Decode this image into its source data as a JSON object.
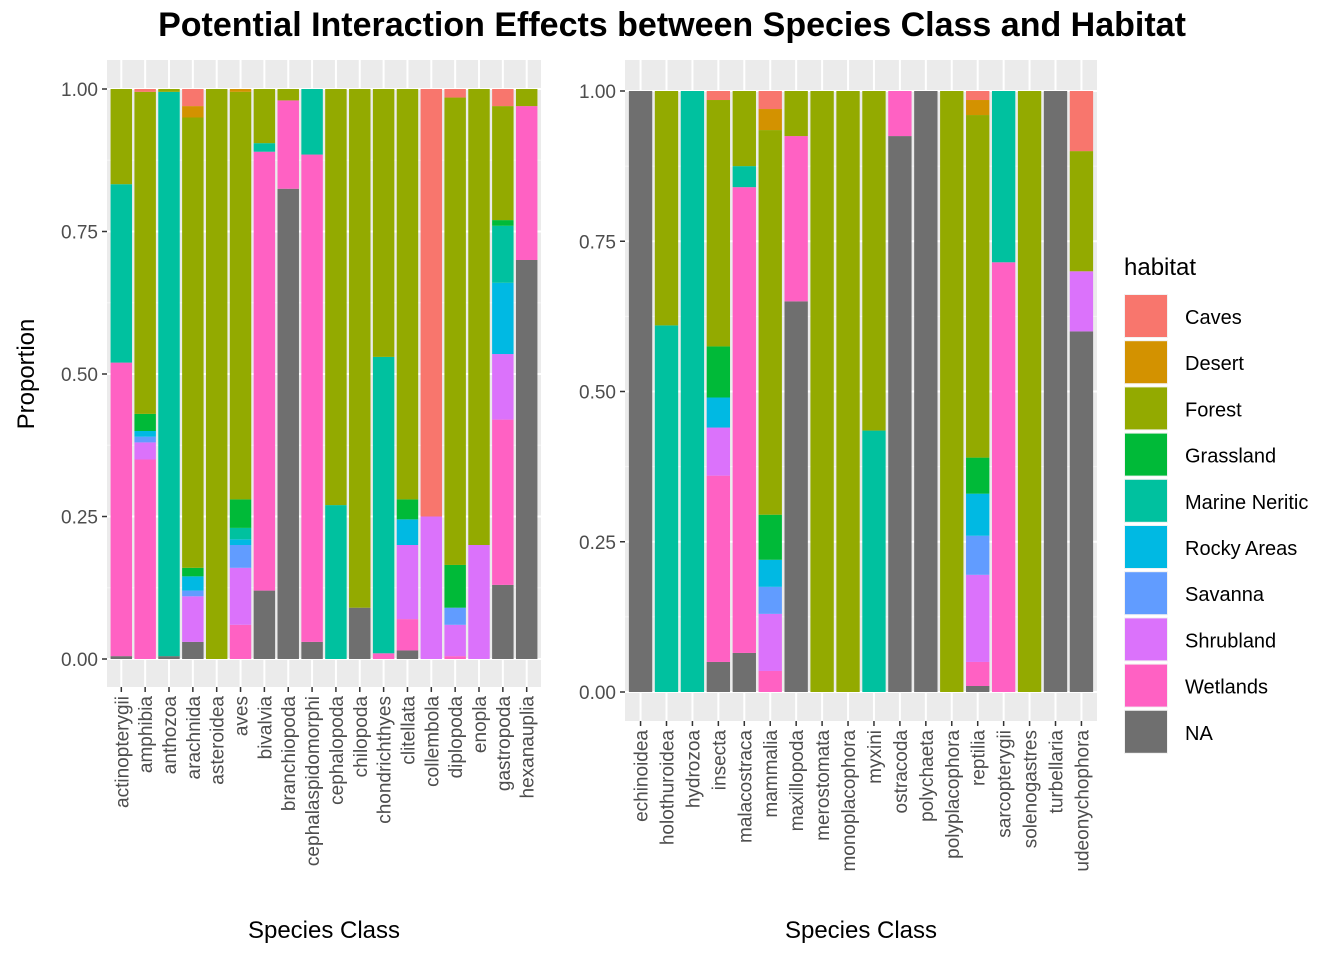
{
  "title": "Potential Interaction Effects between Species Class and Habitat",
  "legend_title": "habitat",
  "chart_data": {
    "type": "bar",
    "stacked": true,
    "habitats": [
      "Caves",
      "Desert",
      "Forest",
      "Grassland",
      "Marine Neritic",
      "Rocky Areas",
      "Savanna",
      "Shrubland",
      "Wetlands",
      "NA"
    ],
    "colors": {
      "Caves": "#F8766D",
      "Desert": "#D39200",
      "Forest": "#93AA00",
      "Grassland": "#00BA38",
      "Marine Neritic": "#00C19F",
      "Rocky Areas": "#00B9E3",
      "Savanna": "#619CFF",
      "Shrubland": "#DB72FB",
      "Wetlands": "#FF61C3",
      "NA": "#6F6F6F"
    },
    "panels": [
      {
        "xlabel": "Species Class",
        "ylabel": "Proportion",
        "ylim": [
          0,
          1
        ],
        "yticks": [
          "0.00",
          "0.25",
          "0.50",
          "0.75",
          "1.00"
        ],
        "categories": [
          "actinopterygii",
          "amphibia",
          "anthozoa",
          "arachnida",
          "asteroidea",
          "aves",
          "bivalvia",
          "branchiopoda",
          "cephalaspidomorphi",
          "cephalopoda",
          "chilopoda",
          "chondrichthyes",
          "clitellata",
          "collembola",
          "diplopoda",
          "enopla",
          "gastropoda",
          "hexanauplia"
        ],
        "values": [
          {
            "NA": 0.005,
            "Wetlands": 0.515,
            "Marine Neritic": 0.313,
            "Forest": 0.167
          },
          {
            "Wetlands": 0.35,
            "Shrubland": 0.03,
            "Savanna": 0.01,
            "Rocky Areas": 0.01,
            "Grassland": 0.03,
            "Forest": 0.565,
            "Caves": 0.005
          },
          {
            "NA": 0.005,
            "Marine Neritic": 0.99,
            "Forest": 0.005
          },
          {
            "NA": 0.03,
            "Shrubland": 0.08,
            "Savanna": 0.01,
            "Rocky Areas": 0.025,
            "Grassland": 0.015,
            "Forest": 0.79,
            "Desert": 0.02,
            "Caves": 0.03
          },
          {
            "Forest": 1.0
          },
          {
            "Wetlands": 0.06,
            "Shrubland": 0.1,
            "Savanna": 0.04,
            "Rocky Areas": 0.01,
            "Marine Neritic": 0.02,
            "Grassland": 0.05,
            "Forest": 0.715,
            "Desert": 0.005
          },
          {
            "NA": 0.12,
            "Wetlands": 0.77,
            "Marine Neritic": 0.015,
            "Forest": 0.095
          },
          {
            "NA": 0.825,
            "Wetlands": 0.155,
            "Forest": 0.02
          },
          {
            "NA": 0.03,
            "Wetlands": 0.855,
            "Marine Neritic": 0.115
          },
          {
            "Marine Neritic": 0.27,
            "Forest": 0.73
          },
          {
            "NA": 0.09,
            "Forest": 0.91
          },
          {
            "Wetlands": 0.01,
            "Marine Neritic": 0.52,
            "Forest": 0.47
          },
          {
            "NA": 0.015,
            "Wetlands": 0.055,
            "Shrubland": 0.13,
            "Rocky Areas": 0.045,
            "Grassland": 0.035,
            "Forest": 0.72
          },
          {
            "Shrubland": 0.25,
            "Caves": 0.75
          },
          {
            "Wetlands": 0.005,
            "Shrubland": 0.055,
            "Savanna": 0.03,
            "Grassland": 0.075,
            "Forest": 0.82,
            "Caves": 0.015
          },
          {
            "Shrubland": 0.2,
            "Forest": 0.8
          },
          {
            "NA": 0.13,
            "Wetlands": 0.29,
            "Shrubland": 0.115,
            "Rocky Areas": 0.125,
            "Marine Neritic": 0.1,
            "Grassland": 0.01,
            "Forest": 0.2,
            "Caves": 0.03
          },
          {
            "NA": 0.7,
            "Wetlands": 0.27,
            "Forest": 0.03
          }
        ]
      },
      {
        "xlabel": "Species Class",
        "ylabel": "",
        "ylim": [
          0,
          1
        ],
        "yticks": [
          "0.00",
          "0.25",
          "0.50",
          "0.75",
          "1.00"
        ],
        "categories": [
          "echinoidea",
          "holothuroidea",
          "hydrozoa",
          "insecta",
          "malacostraca",
          "mammalia",
          "maxillopoda",
          "merostomata",
          "monoplacophora",
          "myxini",
          "ostracoda",
          "polychaeta",
          "polyplacophora",
          "reptilia",
          "sarcopterygii",
          "solenogastres",
          "turbellaria",
          "udeonychophora"
        ],
        "values": [
          {
            "NA": 1.0
          },
          {
            "Marine Neritic": 0.61,
            "Forest": 0.39
          },
          {
            "Marine Neritic": 1.0
          },
          {
            "NA": 0.05,
            "Wetlands": 0.31,
            "Shrubland": 0.08,
            "Rocky Areas": 0.05,
            "Grassland": 0.085,
            "Forest": 0.41,
            "Caves": 0.015
          },
          {
            "NA": 0.065,
            "Wetlands": 0.775,
            "Marine Neritic": 0.035,
            "Forest": 0.125
          },
          {
            "Wetlands": 0.035,
            "Shrubland": 0.095,
            "Savanna": 0.045,
            "Rocky Areas": 0.045,
            "Grassland": 0.075,
            "Forest": 0.64,
            "Desert": 0.035,
            "Caves": 0.03
          },
          {
            "NA": 0.65,
            "Wetlands": 0.275,
            "Forest": 0.075
          },
          {
            "Forest": 1.0
          },
          {
            "Forest": 1.0
          },
          {
            "Marine Neritic": 0.435,
            "Forest": 0.565
          },
          {
            "NA": 0.925,
            "Wetlands": 0.075
          },
          {
            "NA": 1.0
          },
          {
            "Forest": 1.0
          },
          {
            "NA": 0.01,
            "Wetlands": 0.04,
            "Shrubland": 0.145,
            "Savanna": 0.065,
            "Rocky Areas": 0.07,
            "Grassland": 0.06,
            "Forest": 0.57,
            "Desert": 0.025,
            "Caves": 0.015
          },
          {
            "Wetlands": 0.715,
            "Marine Neritic": 0.285
          },
          {
            "Forest": 1.0
          },
          {
            "NA": 1.0
          },
          {
            "NA": 0.6,
            "Shrubland": 0.1,
            "Forest": 0.2,
            "Caves": 0.1
          }
        ]
      }
    ]
  }
}
